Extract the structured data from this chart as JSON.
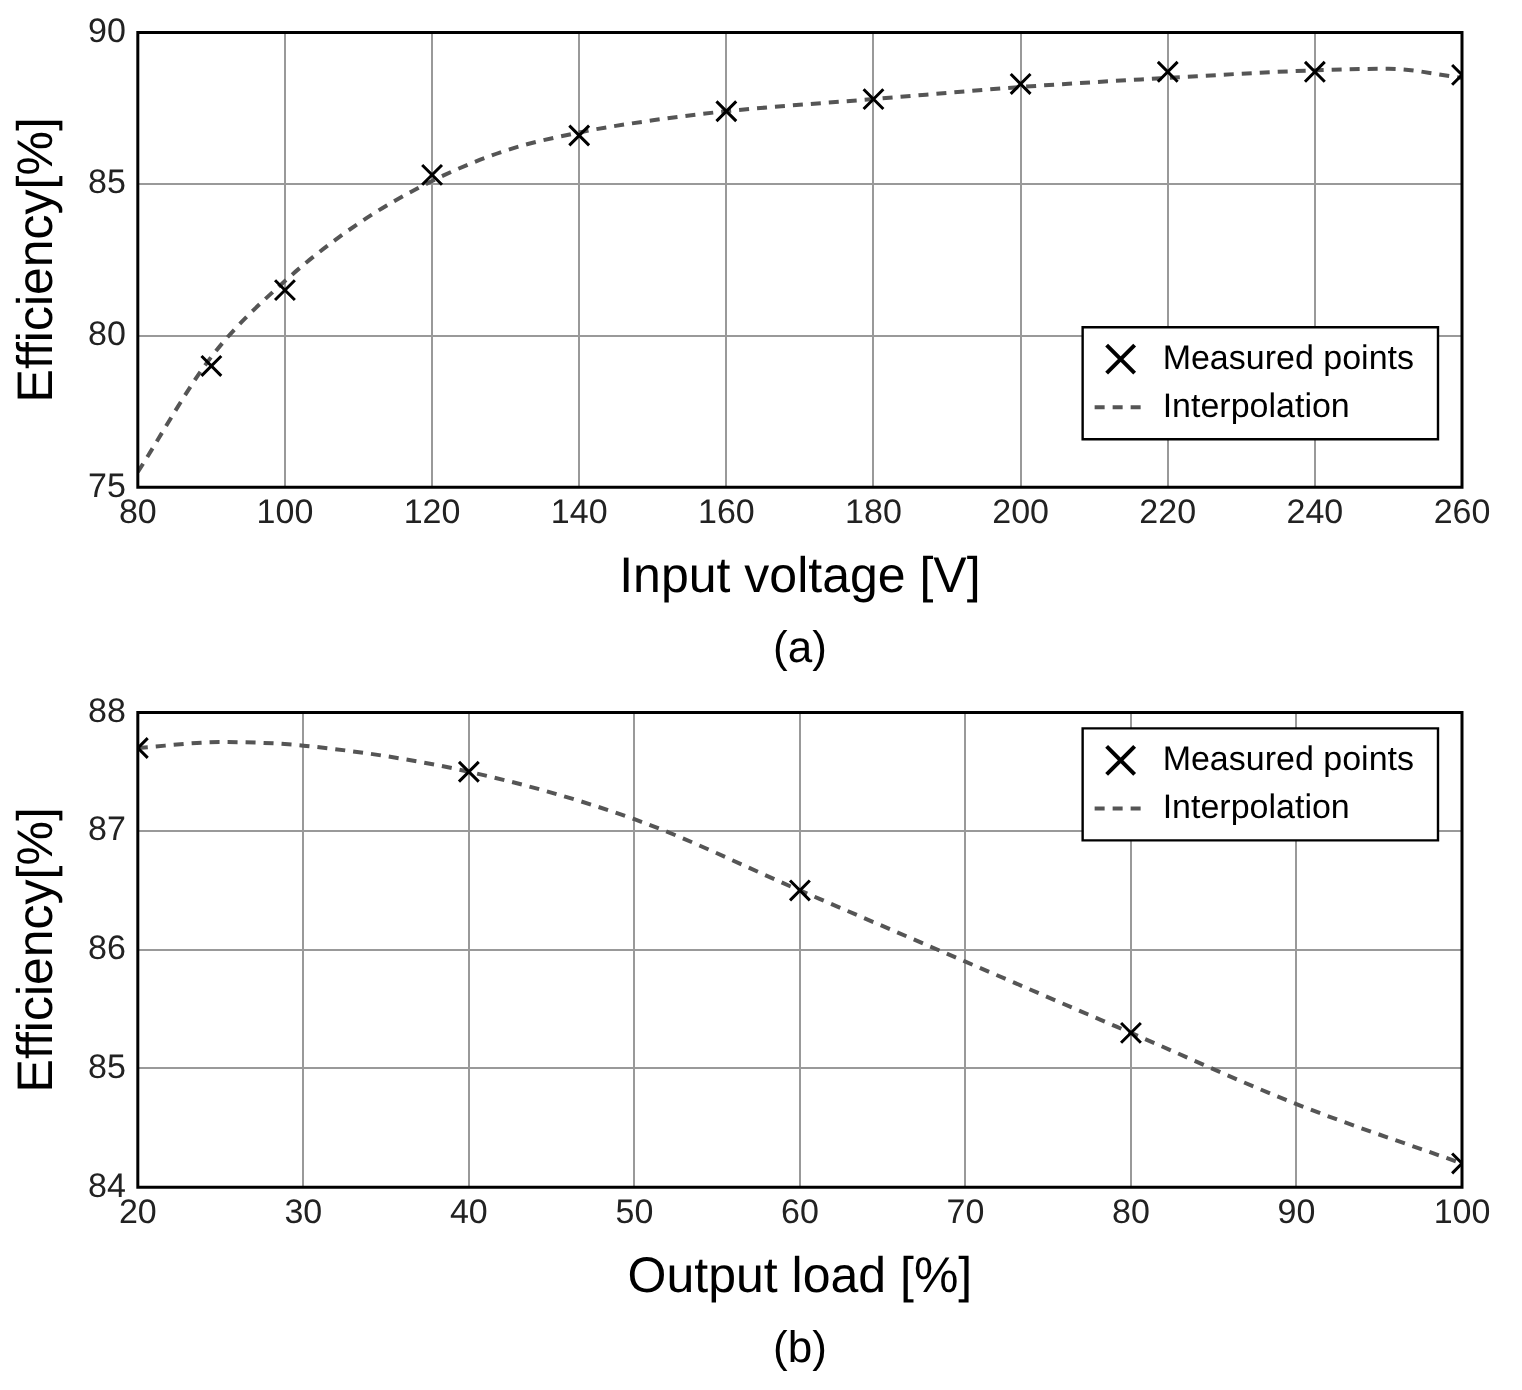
{
  "chart_data": [
    {
      "type": "scatter",
      "xlabel": "Input voltage [V]",
      "ylabel": "Efficiency[%]",
      "annotations": [
        "(a)"
      ],
      "xlim": [
        80,
        260
      ],
      "xticks": [
        80,
        100,
        120,
        140,
        160,
        180,
        200,
        220,
        240,
        260
      ],
      "ylim": [
        75,
        90
      ],
      "yticks": [
        75,
        80,
        85,
        90
      ],
      "grid": true,
      "legend": "bottom right",
      "series": [
        {
          "name": "Measured points",
          "type": "scatter",
          "marker": "cross",
          "color": "#000000",
          "x": [
            90,
            100,
            120,
            140,
            160,
            180,
            200,
            220,
            240,
            260
          ],
          "values": [
            79.0,
            81.5,
            85.3,
            86.6,
            87.4,
            87.8,
            88.3,
            88.7,
            88.7,
            88.6
          ]
        },
        {
          "name": "Interpolation",
          "type": "line",
          "marker": "none",
          "line_style": "dashed",
          "color": "#555555",
          "x": [
            80,
            90,
            100,
            110,
            120,
            130,
            140,
            150,
            160,
            180,
            200,
            220,
            240,
            250,
            260
          ],
          "values": [
            75.5,
            79.3,
            81.8,
            83.7,
            85.1,
            86.1,
            86.7,
            87.1,
            87.4,
            87.8,
            88.2,
            88.5,
            88.75,
            88.8,
            88.5
          ]
        }
      ]
    },
    {
      "type": "scatter",
      "xlabel": "Output load [%]",
      "ylabel": "Efficiency[%]",
      "annotations": [
        "(b)"
      ],
      "xlim": [
        20,
        100
      ],
      "xticks": [
        20,
        30,
        40,
        50,
        60,
        70,
        80,
        90,
        100
      ],
      "ylim": [
        84,
        88
      ],
      "yticks": [
        84,
        85,
        86,
        87,
        88
      ],
      "grid": true,
      "legend": "top right",
      "series": [
        {
          "name": "Measured points",
          "type": "scatter",
          "marker": "cross",
          "color": "#000000",
          "x": [
            20,
            40,
            60,
            80,
            100
          ],
          "values": [
            87.7,
            87.5,
            86.5,
            85.3,
            84.2
          ]
        },
        {
          "name": "Interpolation",
          "type": "line",
          "marker": "none",
          "line_style": "dashed",
          "color": "#555555",
          "x": [
            20,
            25,
            30,
            40,
            50,
            60,
            70,
            80,
            90,
            100
          ],
          "values": [
            87.7,
            87.75,
            87.72,
            87.5,
            87.1,
            86.5,
            85.9,
            85.3,
            84.7,
            84.2
          ]
        }
      ]
    }
  ]
}
